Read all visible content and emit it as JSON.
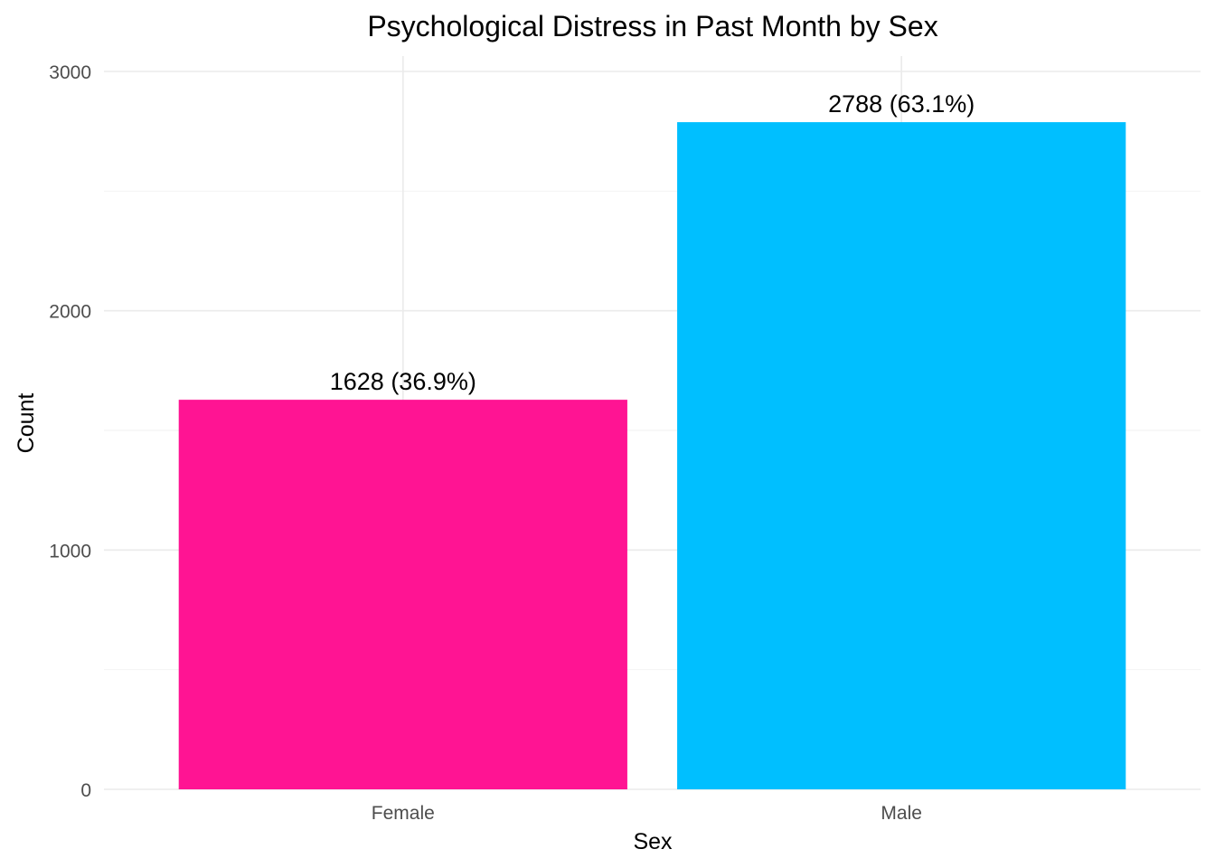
{
  "chart_data": {
    "type": "bar",
    "title": "Psychological Distress in Past Month by Sex",
    "xlabel": "Sex",
    "ylabel": "Count",
    "categories": [
      "Female",
      "Male"
    ],
    "values": [
      1628,
      2788
    ],
    "data_labels": [
      "1628 (36.9%)",
      "2788 (63.1%)"
    ],
    "colors": [
      "#FF1493",
      "#00BFFF"
    ],
    "ylim": [
      0,
      3000
    ],
    "y_ticks": [
      0,
      1000,
      2000,
      3000
    ],
    "y_tick_labels": [
      "0",
      "1000",
      "2000",
      "3000"
    ],
    "grid": true,
    "legend": "none"
  }
}
